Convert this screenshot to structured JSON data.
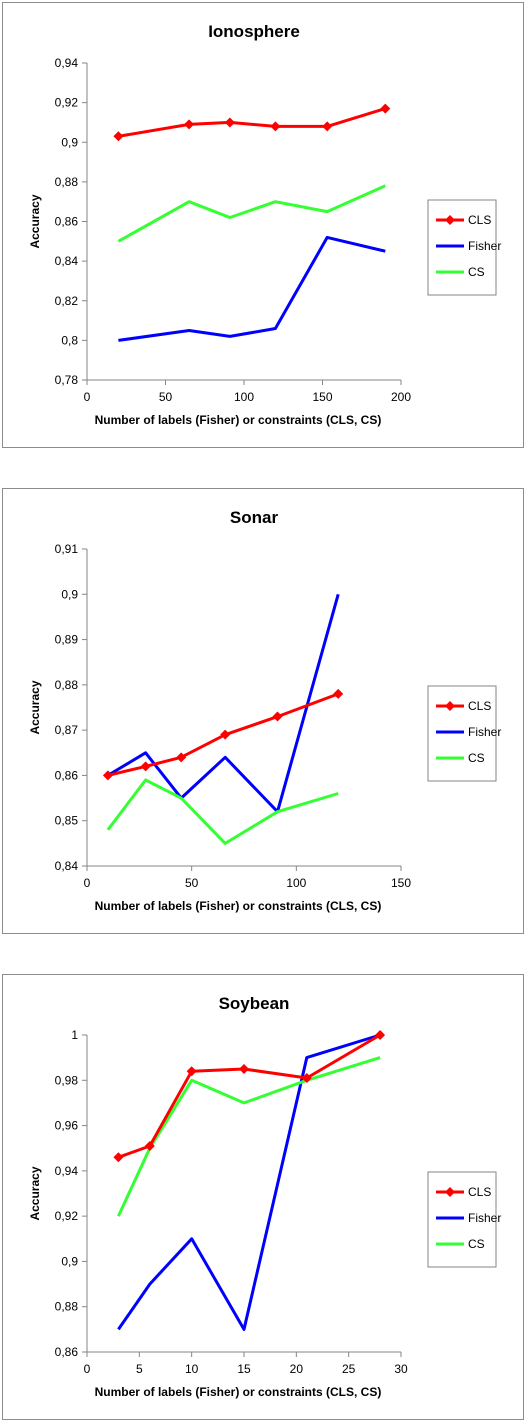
{
  "chart_data": [
    {
      "type": "line",
      "title": "Ionosphere",
      "xlabel": "Number of labels (Fisher) or constraints (CLS, CS)",
      "ylabel": "Accuracy",
      "xlim": [
        0,
        200
      ],
      "ylim": [
        0.78,
        0.94
      ],
      "x_ticks": [
        0,
        50,
        100,
        150,
        200
      ],
      "y_ticks": [
        0.78,
        0.8,
        0.82,
        0.84,
        0.86,
        0.88,
        0.9,
        0.92,
        0.94
      ],
      "x_tick_labels": [
        "0",
        "50",
        "100",
        "150",
        "200"
      ],
      "y_tick_labels": [
        "0,78",
        "0,8",
        "0,82",
        "0,84",
        "0,86",
        "0,88",
        "0,9",
        "0,92",
        "0,94"
      ],
      "grid": false,
      "legend_position": "right",
      "series": [
        {
          "name": "CLS",
          "color": "#ff0000",
          "marker": "diamond",
          "x": [
            20,
            65,
            91,
            120,
            153,
            190
          ],
          "y": [
            0.903,
            0.909,
            0.91,
            0.908,
            0.908,
            0.917
          ]
        },
        {
          "name": "Fisher",
          "color": "#0000ff",
          "marker": "none",
          "x": [
            20,
            65,
            91,
            120,
            153,
            190
          ],
          "y": [
            0.8,
            0.805,
            0.802,
            0.806,
            0.852,
            0.845
          ]
        },
        {
          "name": "CS",
          "color": "#33ff33",
          "marker": "none",
          "x": [
            20,
            65,
            91,
            120,
            153,
            190
          ],
          "y": [
            0.85,
            0.87,
            0.862,
            0.87,
            0.865,
            0.878
          ]
        }
      ]
    },
    {
      "type": "line",
      "title": "Sonar",
      "xlabel": "Number of labels (Fisher) or constraints (CLS, CS)",
      "ylabel": "Accuracy",
      "xlim": [
        0,
        150
      ],
      "ylim": [
        0.84,
        0.91
      ],
      "x_ticks": [
        0,
        50,
        100,
        150
      ],
      "y_ticks": [
        0.84,
        0.85,
        0.86,
        0.87,
        0.88,
        0.89,
        0.9,
        0.91
      ],
      "x_tick_labels": [
        "0",
        "50",
        "100",
        "150"
      ],
      "y_tick_labels": [
        "0,84",
        "0,85",
        "0,86",
        "0,87",
        "0,88",
        "0,89",
        "0,9",
        "0,91"
      ],
      "grid": false,
      "legend_position": "right",
      "series": [
        {
          "name": "CLS",
          "color": "#ff0000",
          "marker": "diamond",
          "x": [
            10,
            28,
            45,
            66,
            91,
            120
          ],
          "y": [
            0.86,
            0.862,
            0.864,
            0.869,
            0.873,
            0.878
          ]
        },
        {
          "name": "Fisher",
          "color": "#0000ff",
          "marker": "none",
          "x": [
            10,
            28,
            45,
            66,
            91,
            120
          ],
          "y": [
            0.86,
            0.865,
            0.855,
            0.864,
            0.852,
            0.9
          ]
        },
        {
          "name": "CS",
          "color": "#33ff33",
          "marker": "none",
          "x": [
            10,
            28,
            45,
            66,
            91,
            120
          ],
          "y": [
            0.848,
            0.859,
            0.855,
            0.845,
            0.852,
            0.856
          ]
        }
      ]
    },
    {
      "type": "line",
      "title": "Soybean",
      "xlabel": "Number of labels (Fisher) or constraints (CLS, CS)",
      "ylabel": "Accuracy",
      "xlim": [
        0,
        30
      ],
      "ylim": [
        0.86,
        1.0
      ],
      "x_ticks": [
        0,
        5,
        10,
        15,
        20,
        25,
        30
      ],
      "y_ticks": [
        0.86,
        0.88,
        0.9,
        0.92,
        0.94,
        0.96,
        0.98,
        1.0
      ],
      "x_tick_labels": [
        "0",
        "5",
        "10",
        "15",
        "20",
        "25",
        "30"
      ],
      "y_tick_labels": [
        "0,86",
        "0,88",
        "0,9",
        "0,92",
        "0,94",
        "0,96",
        "0,98",
        "1"
      ],
      "grid": false,
      "legend_position": "right",
      "series": [
        {
          "name": "CLS",
          "color": "#ff0000",
          "marker": "diamond",
          "x": [
            3,
            6,
            10,
            15,
            21,
            28
          ],
          "y": [
            0.946,
            0.951,
            0.984,
            0.985,
            0.981,
            1.0
          ]
        },
        {
          "name": "Fisher",
          "color": "#0000ff",
          "marker": "none",
          "x": [
            3,
            6,
            10,
            15,
            21,
            28
          ],
          "y": [
            0.87,
            0.89,
            0.91,
            0.87,
            0.99,
            1.0
          ]
        },
        {
          "name": "CS",
          "color": "#33ff33",
          "marker": "none",
          "x": [
            3,
            6,
            10,
            15,
            21,
            28
          ],
          "y": [
            0.92,
            0.95,
            0.98,
            0.97,
            0.98,
            0.99
          ]
        }
      ]
    }
  ]
}
